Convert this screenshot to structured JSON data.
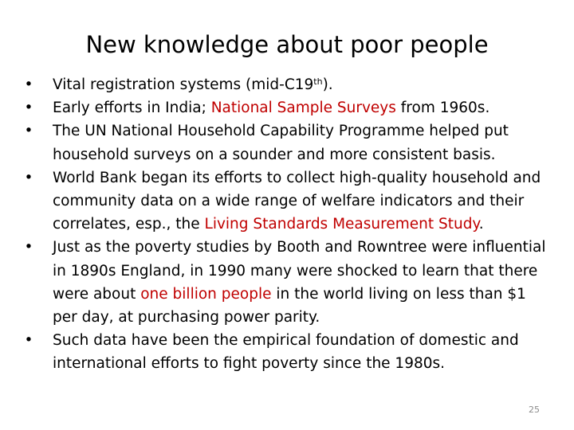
{
  "slide": {
    "title": "New knowledge about poor people",
    "page_number": "25",
    "bullet_char": "•",
    "accent_color": "#c00000",
    "bullets": [
      {
        "pre": "Vital registration systems (mid-C19",
        "sup": "th",
        "post": ")."
      },
      {
        "pre": "Early efforts in India; ",
        "highlight": "National Sample Surveys",
        "post": " from 1960s."
      },
      {
        "text": "The UN National Household Capability Programme helped put household surveys on a sounder and more consistent basis."
      },
      {
        "pre": "World Bank began its efforts to collect high-quality household and community data on a wide range of welfare indicators and their correlates, esp., the ",
        "highlight": "Living Standards Measurement Study",
        "post": "."
      },
      {
        "pre": "Just as the poverty studies by Booth and Rowntree were influential in 1890s England, in 1990 many were shocked to learn that there were about ",
        "highlight": "one billion people",
        "post": " in the world living on less than $1 per day, at purchasing power parity."
      },
      {
        "text": "Such data have been the empirical foundation of domestic and international efforts to fight poverty since the 1980s."
      }
    ]
  }
}
